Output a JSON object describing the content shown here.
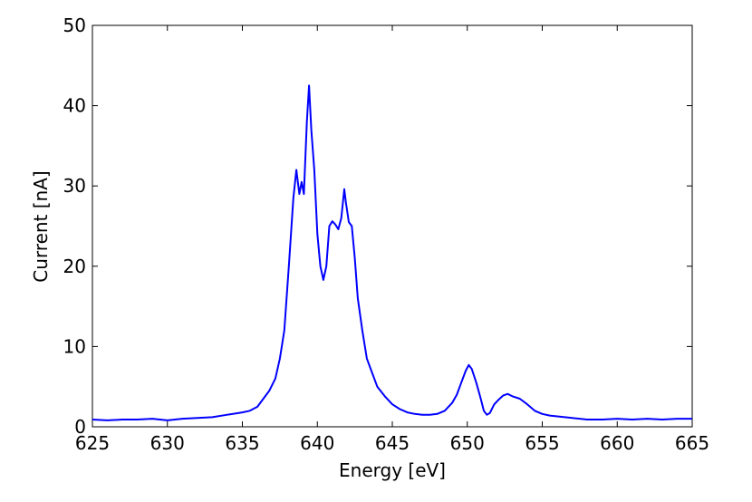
{
  "chart_data": {
    "type": "line",
    "title": "",
    "xlabel": "Energy [eV]",
    "ylabel": "Current [nA]",
    "xlim": [
      625,
      665
    ],
    "ylim": [
      0,
      50
    ],
    "xticks": [
      "625",
      "630",
      "635",
      "640",
      "645",
      "650",
      "655",
      "660",
      "665"
    ],
    "yticks": [
      "0",
      "10",
      "20",
      "30",
      "40",
      "50"
    ],
    "grid": false,
    "legend": "none",
    "series": [
      {
        "color": "#0000ff",
        "x": [
          625,
          626,
          627,
          628,
          629,
          630,
          631,
          632,
          633,
          634,
          635,
          635.5,
          636,
          636.4,
          636.8,
          637.2,
          637.5,
          637.8,
          638.1,
          638.4,
          638.6,
          638.8,
          638.95,
          639.1,
          639.3,
          639.45,
          639.6,
          639.8,
          640,
          640.2,
          640.4,
          640.6,
          640.8,
          641,
          641.2,
          641.4,
          641.6,
          641.8,
          641.9,
          642.1,
          642.3,
          642.5,
          642.7,
          643,
          643.3,
          643.6,
          644,
          644.5,
          645,
          645.5,
          646,
          646.5,
          647,
          647.5,
          648,
          648.5,
          649,
          649.3,
          649.6,
          649.9,
          650.1,
          650.3,
          650.6,
          650.9,
          651.1,
          651.3,
          651.5,
          651.8,
          652.1,
          652.4,
          652.7,
          653,
          653.5,
          654,
          654.5,
          655,
          655.5,
          656,
          657,
          658,
          659,
          660,
          661,
          662,
          663,
          664,
          665
        ],
        "y": [
          0.9,
          0.8,
          0.9,
          0.9,
          1.0,
          0.8,
          1.0,
          1.1,
          1.2,
          1.5,
          1.8,
          2.0,
          2.5,
          3.5,
          4.5,
          6.0,
          8.5,
          12.0,
          20.0,
          28.5,
          32.0,
          29.0,
          30.5,
          29.0,
          38.0,
          42.5,
          37.0,
          32.0,
          24.0,
          20.0,
          18.3,
          20.0,
          25.0,
          25.6,
          25.2,
          24.6,
          26.0,
          29.6,
          28.0,
          25.5,
          25.0,
          21.0,
          16.0,
          12.0,
          8.5,
          7.0,
          5.0,
          3.8,
          2.8,
          2.2,
          1.8,
          1.6,
          1.5,
          1.5,
          1.6,
          2.0,
          3.0,
          4.0,
          5.5,
          7.0,
          7.7,
          7.2,
          5.5,
          3.5,
          2.0,
          1.5,
          1.7,
          2.8,
          3.4,
          3.9,
          4.1,
          3.8,
          3.5,
          2.8,
          2.0,
          1.6,
          1.4,
          1.3,
          1.1,
          0.9,
          0.9,
          1.0,
          0.9,
          1.0,
          0.9,
          1.0,
          1.0
        ]
      }
    ]
  }
}
